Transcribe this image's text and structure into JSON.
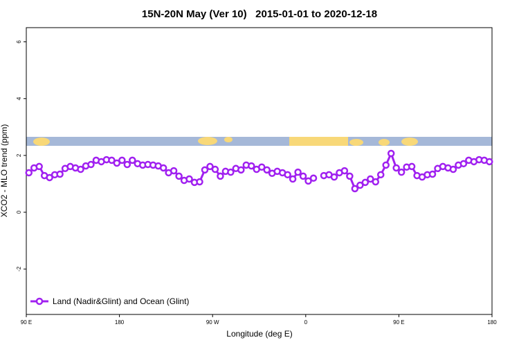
{
  "chart_data": {
    "type": "line",
    "title": "15N-20N May (Ver 10)   2015-01-01 to 2020-12-18",
    "xlabel": "Longitude (deg E)",
    "ylabel": "XCO2 - MLO trend (ppm)",
    "xlim": [
      90,
      540
    ],
    "xticks": [
      {
        "value": 90,
        "label": "90 E"
      },
      180,
      {
        "value": 270,
        "label": "90 W"
      },
      {
        "value": 360,
        "label": "0"
      },
      {
        "value": 450,
        "label": "90 E"
      },
      {
        "value": 540,
        "label": "180"
      }
    ],
    "ylim": [
      -3.6,
      6.5
    ],
    "yticks": [
      -2,
      0,
      2,
      4,
      6
    ],
    "legend": "bottomleft",
    "x": [
      92.5,
      97.5,
      102.5,
      107.5,
      112.5,
      117.5,
      122.5,
      127.5,
      132.5,
      137.5,
      142.5,
      147.5,
      152.5,
      157.5,
      162.5,
      167.5,
      172.5,
      177.5,
      182.5,
      187.5,
      192.5,
      197.5,
      202.5,
      207.5,
      212.5,
      217.5,
      222.5,
      227.5,
      232.5,
      237.5,
      242.5,
      247.5,
      252.5,
      257.5,
      262.5,
      267.5,
      272.5,
      277.5,
      282.5,
      287.5,
      292.5,
      297.5,
      302.5,
      307.5,
      312.5,
      317.5,
      322.5,
      327.5,
      332.5,
      337.5,
      342.5,
      347.5,
      352.5,
      357.5,
      362.5,
      367.5,
      372.5,
      377.5,
      382.5,
      387.5,
      392.5,
      397.5,
      402.5,
      407.5,
      412.5,
      417.5,
      422.5,
      427.5,
      432.5,
      437.5,
      442.5,
      447.5,
      452.5,
      457.5,
      462.5,
      467.5,
      472.5,
      477.5,
      482.5,
      487.5,
      492.5,
      497.5,
      502.5,
      507.5,
      512.5,
      517.5,
      522.5,
      527.5,
      532.5,
      537.5
    ],
    "series": [
      {
        "name": "Land (Nadir&Glint) and Ocean (Glint)",
        "color": "#a020f0",
        "values": [
          1.39,
          1.56,
          1.61,
          1.29,
          1.22,
          1.32,
          1.34,
          1.54,
          1.61,
          1.56,
          1.51,
          1.63,
          1.68,
          1.83,
          1.78,
          1.85,
          1.83,
          1.73,
          1.83,
          1.68,
          1.83,
          1.71,
          1.66,
          1.68,
          1.66,
          1.63,
          1.56,
          1.39,
          1.46,
          1.27,
          1.12,
          1.17,
          1.05,
          1.07,
          1.49,
          1.61,
          1.51,
          1.27,
          1.44,
          1.41,
          1.54,
          1.49,
          1.66,
          1.63,
          1.51,
          1.59,
          1.49,
          1.37,
          1.44,
          1.39,
          1.32,
          1.17,
          1.41,
          1.27,
          1.1,
          1.2,
          null,
          1.29,
          1.32,
          1.24,
          1.39,
          1.46,
          1.27,
          0.83,
          0.95,
          1.05,
          1.17,
          1.07,
          1.32,
          1.66,
          2.07,
          1.56,
          1.41,
          1.59,
          1.61,
          1.29,
          1.24,
          1.32,
          1.34,
          1.54,
          1.61,
          1.56,
          1.51,
          1.66,
          1.71,
          1.83,
          1.78,
          1.85,
          1.83,
          1.78
        ]
      }
    ]
  }
}
